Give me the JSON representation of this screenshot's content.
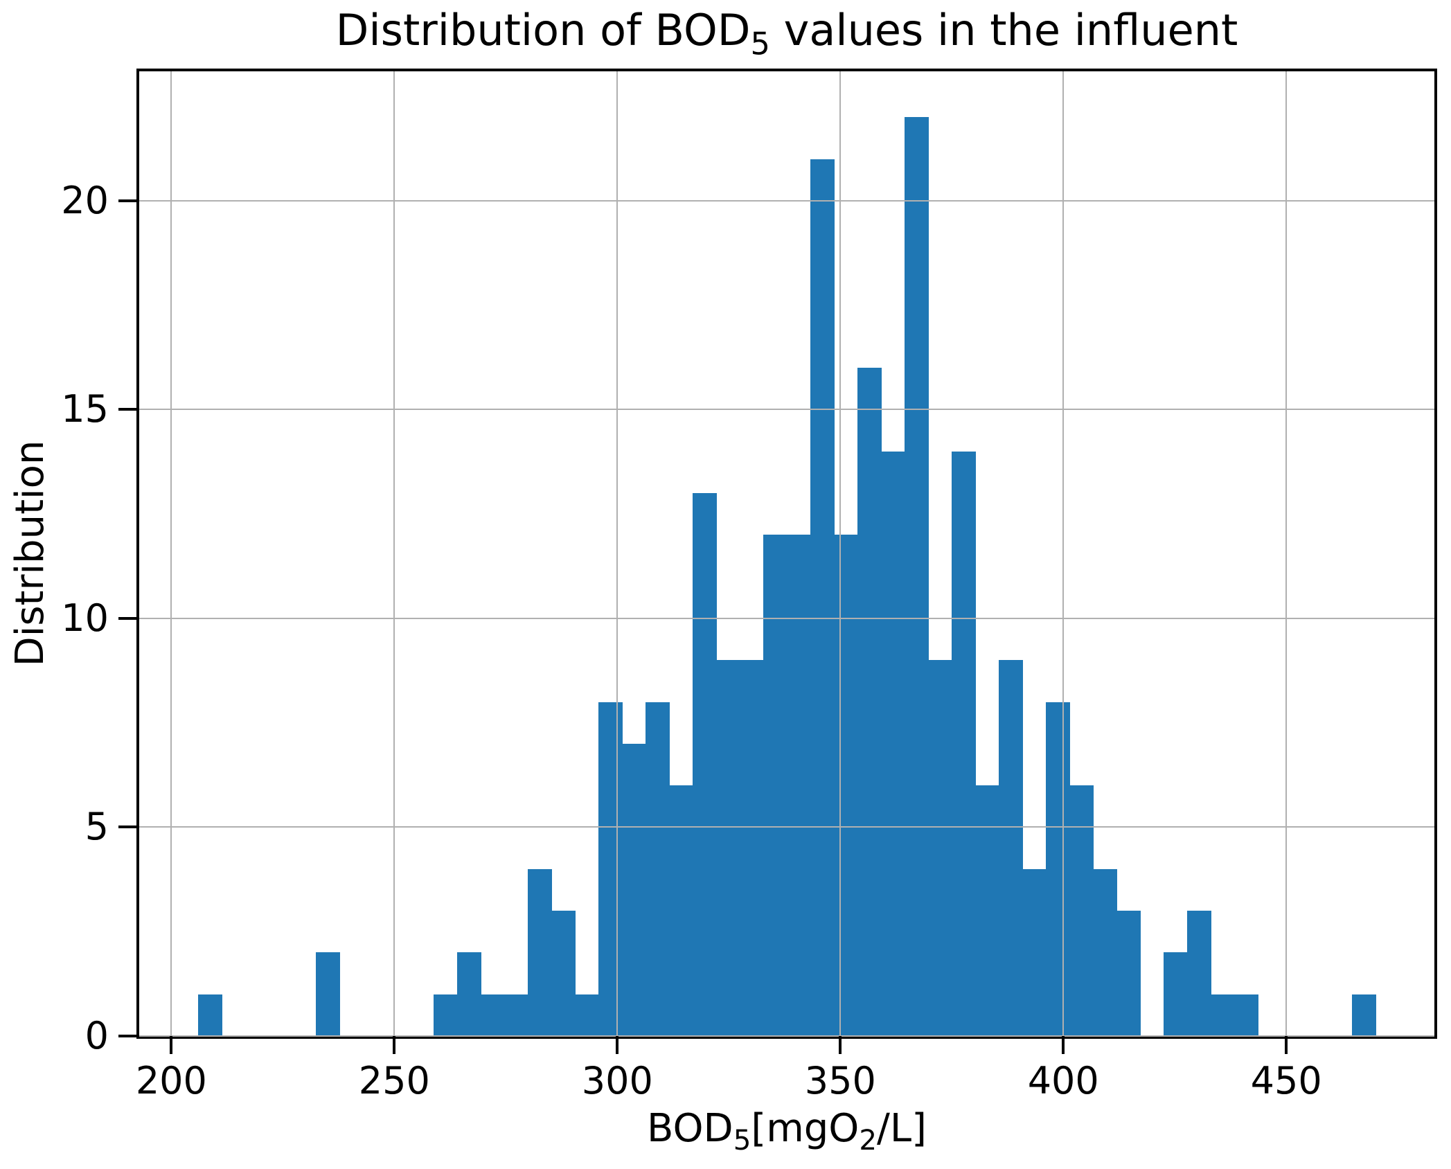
{
  "figure": {
    "title": {
      "prefix": "Distribution of BOD",
      "subscript": "5",
      "suffix": " values in the influent"
    },
    "x_axis": {
      "label_p1": "BOD",
      "label_sub1": "5",
      "label_p2": "[mgO",
      "label_sub2": "2",
      "label_p3": "/L]",
      "tick_labels": [
        "200",
        "250",
        "300",
        "350",
        "400",
        "450"
      ]
    },
    "y_axis": {
      "label": "Distribution",
      "tick_labels": [
        "0",
        "5",
        "10",
        "15",
        "20"
      ]
    }
  },
  "chart_data": {
    "type": "bar",
    "chart_kind": "histogram",
    "title": "Distribution of BOD5 values in the influent",
    "xlabel": "BOD5[mgO2/L]",
    "ylabel": "Distribution",
    "bin_start": 206,
    "bin_width": 5.28,
    "bin_count": 50,
    "counts": [
      1,
      0,
      0,
      0,
      0,
      2,
      0,
      0,
      0,
      0,
      1,
      2,
      1,
      1,
      4,
      3,
      1,
      8,
      7,
      8,
      6,
      13,
      9,
      9,
      12,
      12,
      21,
      12,
      16,
      14,
      22,
      9,
      14,
      6,
      9,
      4,
      8,
      6,
      4,
      3,
      0,
      2,
      3,
      1,
      1,
      0,
      0,
      0,
      0,
      1
    ],
    "total_observations": 256,
    "max_count": 22,
    "xticks": [
      200,
      250,
      300,
      350,
      400,
      450
    ],
    "yticks": [
      0,
      5,
      10,
      15,
      20
    ],
    "xlim": [
      192.8,
      483.2
    ],
    "ylim": [
      0,
      23.1
    ],
    "grid": true,
    "grid_drawn_above_bars": true,
    "legend": false,
    "colors": {
      "bar": "#1f77b4",
      "grid": "#b0b0b0",
      "spine": "#000000",
      "text": "#000000",
      "background": "#ffffff"
    }
  }
}
